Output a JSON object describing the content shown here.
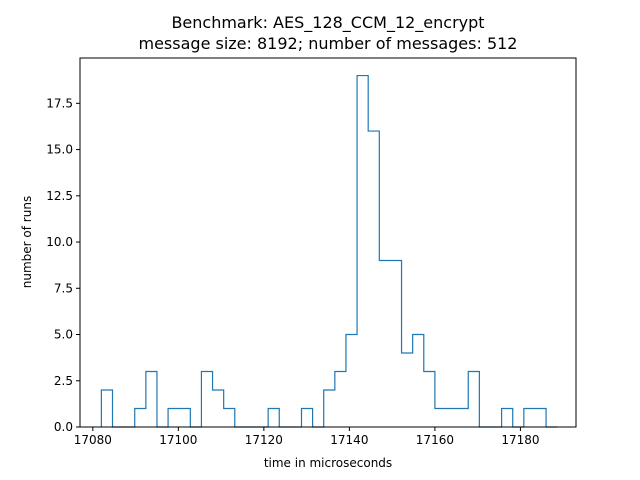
{
  "chart_data": {
    "type": "histogram",
    "title": "Benchmark: AES_128_CCM_12_encrypt",
    "subtitle": "message size: 8192; number of messages: 512",
    "xlabel": "time in microseconds",
    "ylabel": "number of runs",
    "xlim": [
      17077,
      17193
    ],
    "ylim": [
      0,
      19.95
    ],
    "x_ticks": [
      17080,
      17100,
      17120,
      17140,
      17160,
      17180
    ],
    "y_ticks": [
      0.0,
      2.5,
      5.0,
      7.5,
      10.0,
      12.5,
      15.0,
      17.5
    ],
    "y_tick_labels": [
      "0.0",
      "2.5",
      "5.0",
      "7.5",
      "10.0",
      "12.5",
      "15.0",
      "17.5"
    ],
    "bin_edges": [
      17082,
      17084.6,
      17087.2,
      17089.8,
      17092.4,
      17095,
      17097.6,
      17100.2,
      17102.8,
      17105.4,
      17108,
      17110.6,
      17113.2,
      17115.8,
      17118.4,
      17121,
      17123.6,
      17126.2,
      17128.8,
      17131.4,
      17134,
      17136.6,
      17139.2,
      17141.8,
      17144.4,
      17147,
      17149.6,
      17152.2,
      17154.8,
      17157.4,
      17160,
      17162.6,
      17165.2,
      17167.8,
      17170.4,
      17173,
      17175.6,
      17178.2,
      17180.8,
      17183.4,
      17186,
      17188.6
    ],
    "counts": [
      2,
      0,
      0,
      1,
      3,
      0,
      1,
      1,
      0,
      3,
      2,
      1,
      0,
      0,
      0,
      1,
      0,
      0,
      1,
      0,
      2,
      3,
      5,
      19,
      16,
      9,
      9,
      4,
      5,
      3,
      1,
      1,
      1,
      3,
      0,
      0,
      1,
      0,
      1,
      1,
      0
    ],
    "line_color": "#1f77b4",
    "grid": false
  }
}
